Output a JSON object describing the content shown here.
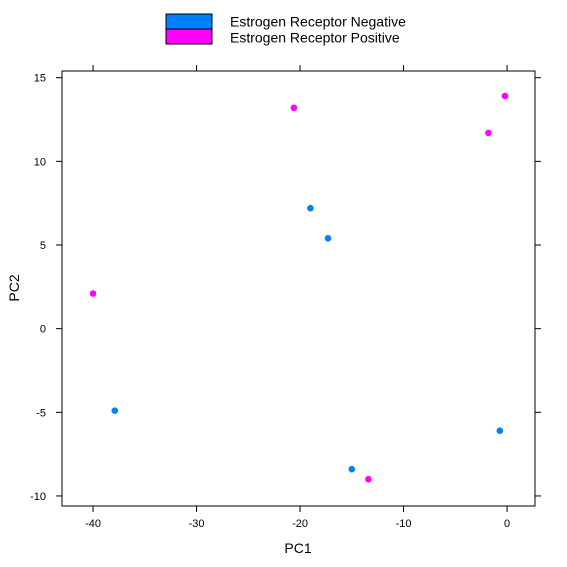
{
  "chart_data": {
    "type": "scatter",
    "title": "",
    "xlabel": "PC1",
    "ylabel": "PC2",
    "xlim": [
      -43,
      2.7
    ],
    "ylim": [
      -10.6,
      15.4
    ],
    "x_ticks": [
      -40,
      -30,
      -20,
      -10,
      0
    ],
    "y_ticks": [
      -10,
      -5,
      0,
      5,
      10,
      15
    ],
    "grid": false,
    "legend_position": "top",
    "series": [
      {
        "name": "Estrogen Receptor Negative",
        "color": "#0080ff",
        "points": [
          {
            "x": -37.9,
            "y": -4.9
          },
          {
            "x": -19.0,
            "y": 7.2
          },
          {
            "x": -17.3,
            "y": 5.4
          },
          {
            "x": -15.0,
            "y": -8.4
          },
          {
            "x": -0.7,
            "y": -6.1
          }
        ]
      },
      {
        "name": "Estrogen Receptor Positive",
        "color": "#ff00ff",
        "points": [
          {
            "x": -40.0,
            "y": 2.1
          },
          {
            "x": -20.6,
            "y": 13.2
          },
          {
            "x": -13.4,
            "y": -9.0
          },
          {
            "x": -1.8,
            "y": 11.7
          },
          {
            "x": -0.2,
            "y": 13.9
          }
        ]
      }
    ]
  }
}
